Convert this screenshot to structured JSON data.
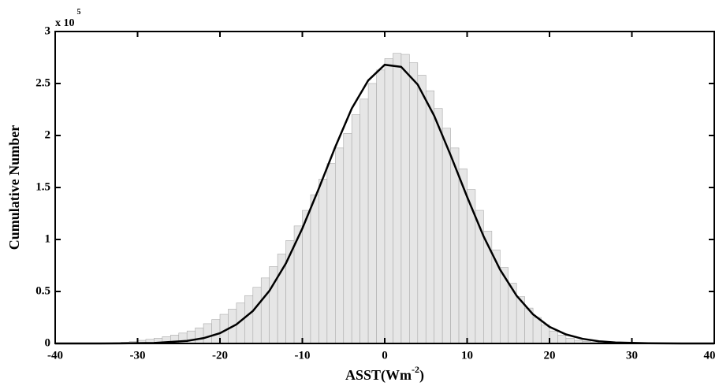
{
  "chart_data": {
    "type": "histogram",
    "y_label": "Cumulative Number",
    "x_label": {
      "text": "ASST(Wm",
      "sup": "-2",
      "close": ")"
    },
    "y_multiplier": {
      "base": "x 10",
      "exponent": "5"
    },
    "bins": [
      -35,
      -34,
      -33,
      -32,
      -31,
      -30,
      -29,
      -28,
      -27,
      -26,
      -25,
      -24,
      -23,
      -22,
      -21,
      -20,
      -19,
      -18,
      -17,
      -16,
      -15,
      -14,
      -13,
      -12,
      -11,
      -10,
      -9,
      -8,
      -7,
      -6,
      -5,
      -4,
      -3,
      -2,
      -1,
      0,
      1,
      2,
      3,
      4,
      5,
      6,
      7,
      8,
      9,
      10,
      11,
      12,
      13,
      14,
      15,
      16,
      17,
      18,
      19,
      20,
      21,
      22,
      23,
      24,
      25,
      26,
      27,
      28,
      29,
      30
    ],
    "values": [
      0.002,
      0.004,
      0.007,
      0.012,
      0.018,
      0.03,
      0.04,
      0.05,
      0.065,
      0.08,
      0.1,
      0.12,
      0.15,
      0.19,
      0.23,
      0.28,
      0.33,
      0.39,
      0.46,
      0.54,
      0.63,
      0.74,
      0.86,
      0.99,
      1.13,
      1.28,
      1.43,
      1.58,
      1.73,
      1.88,
      2.02,
      2.2,
      2.35,
      2.5,
      2.63,
      2.74,
      2.79,
      2.78,
      2.7,
      2.58,
      2.43,
      2.26,
      2.07,
      1.88,
      1.68,
      1.48,
      1.28,
      1.08,
      0.9,
      0.73,
      0.58,
      0.45,
      0.34,
      0.25,
      0.18,
      0.12,
      0.08,
      0.05,
      0.03,
      0.02,
      0.01,
      0.006,
      0.003,
      0.002,
      0.001
    ],
    "color": "#e6e6e6",
    "curve": {
      "color": "#000000",
      "x": [
        -40,
        -36,
        -32,
        -28,
        -24,
        -22,
        -20,
        -18,
        -16,
        -14,
        -12,
        -10,
        -8,
        -6,
        -4,
        -2,
        0,
        2,
        4,
        6,
        8,
        10,
        12,
        14,
        16,
        18,
        20,
        22,
        24,
        26,
        28,
        32,
        36,
        40
      ],
      "values": [
        0,
        0,
        0.0007,
        0.0049,
        0.025,
        0.051,
        0.099,
        0.183,
        0.313,
        0.506,
        0.77,
        1.106,
        1.49,
        1.89,
        2.26,
        2.53,
        2.68,
        2.66,
        2.49,
        2.19,
        1.81,
        1.41,
        1.03,
        0.71,
        0.46,
        0.28,
        0.16,
        0.087,
        0.045,
        0.021,
        0.0096,
        0.0016,
        0,
        0
      ]
    },
    "xlim": [
      -40,
      40
    ],
    "xticks": [
      -40,
      -30,
      -20,
      -10,
      0,
      10,
      20,
      30,
      40
    ],
    "ylim": [
      0,
      3
    ],
    "yticks": [
      0,
      0.5,
      1,
      1.5,
      2,
      2.5,
      3
    ]
  }
}
